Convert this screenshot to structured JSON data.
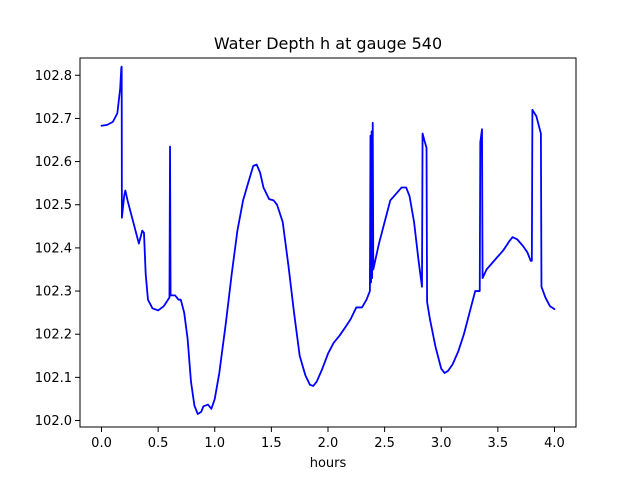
{
  "chart_data": {
    "type": "line",
    "title": "Water Depth h at gauge 540",
    "xlabel": "hours",
    "ylabel": "",
    "xlim": [
      -0.19,
      4.19
    ],
    "ylim": [
      101.985,
      102.84
    ],
    "xticks": [
      0.0,
      0.5,
      1.0,
      1.5,
      2.0,
      2.5,
      3.0,
      3.5,
      4.0
    ],
    "xtick_labels": [
      "0.0",
      "0.5",
      "1.0",
      "1.5",
      "2.0",
      "2.5",
      "3.0",
      "3.5",
      "4.0"
    ],
    "yticks": [
      102.0,
      102.1,
      102.2,
      102.3,
      102.4,
      102.5,
      102.6,
      102.7,
      102.8
    ],
    "ytick_labels": [
      "102.0",
      "102.1",
      "102.2",
      "102.3",
      "102.4",
      "102.5",
      "102.6",
      "102.7",
      "102.8"
    ],
    "grid": false,
    "series": [
      {
        "color": "#0000ff",
        "points": [
          [
            0.0,
            102.683
          ],
          [
            0.05,
            102.685
          ],
          [
            0.1,
            102.692
          ],
          [
            0.14,
            102.712
          ],
          [
            0.165,
            102.77
          ],
          [
            0.175,
            102.818
          ],
          [
            0.178,
            102.82
          ],
          [
            0.18,
            102.47
          ],
          [
            0.2,
            102.52
          ],
          [
            0.21,
            102.533
          ],
          [
            0.23,
            102.51
          ],
          [
            0.26,
            102.48
          ],
          [
            0.3,
            102.44
          ],
          [
            0.33,
            102.41
          ],
          [
            0.36,
            102.44
          ],
          [
            0.375,
            102.435
          ],
          [
            0.39,
            102.34
          ],
          [
            0.41,
            102.28
          ],
          [
            0.45,
            102.26
          ],
          [
            0.5,
            102.255
          ],
          [
            0.55,
            102.265
          ],
          [
            0.6,
            102.285
          ],
          [
            0.605,
            102.635
          ],
          [
            0.61,
            102.29
          ],
          [
            0.65,
            102.29
          ],
          [
            0.68,
            102.28
          ],
          [
            0.7,
            102.28
          ],
          [
            0.73,
            102.25
          ],
          [
            0.76,
            102.19
          ],
          [
            0.79,
            102.09
          ],
          [
            0.82,
            102.035
          ],
          [
            0.85,
            102.015
          ],
          [
            0.88,
            102.02
          ],
          [
            0.9,
            102.033
          ],
          [
            0.94,
            102.037
          ],
          [
            0.97,
            102.027
          ],
          [
            1.0,
            102.05
          ],
          [
            1.04,
            102.11
          ],
          [
            1.1,
            102.23
          ],
          [
            1.15,
            102.34
          ],
          [
            1.2,
            102.44
          ],
          [
            1.25,
            102.51
          ],
          [
            1.3,
            102.555
          ],
          [
            1.34,
            102.59
          ],
          [
            1.37,
            102.593
          ],
          [
            1.4,
            102.575
          ],
          [
            1.43,
            102.54
          ],
          [
            1.48,
            102.513
          ],
          [
            1.52,
            102.51
          ],
          [
            1.55,
            102.5
          ],
          [
            1.6,
            102.46
          ],
          [
            1.65,
            102.36
          ],
          [
            1.7,
            102.25
          ],
          [
            1.75,
            102.15
          ],
          [
            1.8,
            102.105
          ],
          [
            1.84,
            102.083
          ],
          [
            1.87,
            102.08
          ],
          [
            1.9,
            102.09
          ],
          [
            1.95,
            102.12
          ],
          [
            2.0,
            102.155
          ],
          [
            2.05,
            102.18
          ],
          [
            2.1,
            102.196
          ],
          [
            2.15,
            102.215
          ],
          [
            2.2,
            102.235
          ],
          [
            2.25,
            102.262
          ],
          [
            2.3,
            102.262
          ],
          [
            2.34,
            102.28
          ],
          [
            2.37,
            102.3
          ],
          [
            2.375,
            102.66
          ],
          [
            2.38,
            102.32
          ],
          [
            2.385,
            102.67
          ],
          [
            2.39,
            102.33
          ],
          [
            2.395,
            102.69
          ],
          [
            2.4,
            102.35
          ],
          [
            2.45,
            102.41
          ],
          [
            2.5,
            102.46
          ],
          [
            2.55,
            102.51
          ],
          [
            2.6,
            102.525
          ],
          [
            2.65,
            102.54
          ],
          [
            2.69,
            102.54
          ],
          [
            2.72,
            102.52
          ],
          [
            2.76,
            102.46
          ],
          [
            2.8,
            102.37
          ],
          [
            2.83,
            102.31
          ],
          [
            2.835,
            102.665
          ],
          [
            2.85,
            102.65
          ],
          [
            2.87,
            102.632
          ],
          [
            2.875,
            102.275
          ],
          [
            2.9,
            102.235
          ],
          [
            2.95,
            102.17
          ],
          [
            3.0,
            102.12
          ],
          [
            3.03,
            102.11
          ],
          [
            3.06,
            102.115
          ],
          [
            3.1,
            102.13
          ],
          [
            3.15,
            102.16
          ],
          [
            3.2,
            102.2
          ],
          [
            3.25,
            102.25
          ],
          [
            3.3,
            102.3
          ],
          [
            3.34,
            102.3
          ],
          [
            3.345,
            102.645
          ],
          [
            3.36,
            102.675
          ],
          [
            3.365,
            102.33
          ],
          [
            3.4,
            102.35
          ],
          [
            3.45,
            102.365
          ],
          [
            3.5,
            102.38
          ],
          [
            3.55,
            102.395
          ],
          [
            3.6,
            102.415
          ],
          [
            3.63,
            102.425
          ],
          [
            3.67,
            102.42
          ],
          [
            3.72,
            102.405
          ],
          [
            3.76,
            102.39
          ],
          [
            3.79,
            102.37
          ],
          [
            3.8,
            102.37
          ],
          [
            3.805,
            102.72
          ],
          [
            3.84,
            102.705
          ],
          [
            3.88,
            102.665
          ],
          [
            3.885,
            102.31
          ],
          [
            3.92,
            102.285
          ],
          [
            3.96,
            102.265
          ],
          [
            4.0,
            102.258
          ]
        ]
      }
    ]
  }
}
